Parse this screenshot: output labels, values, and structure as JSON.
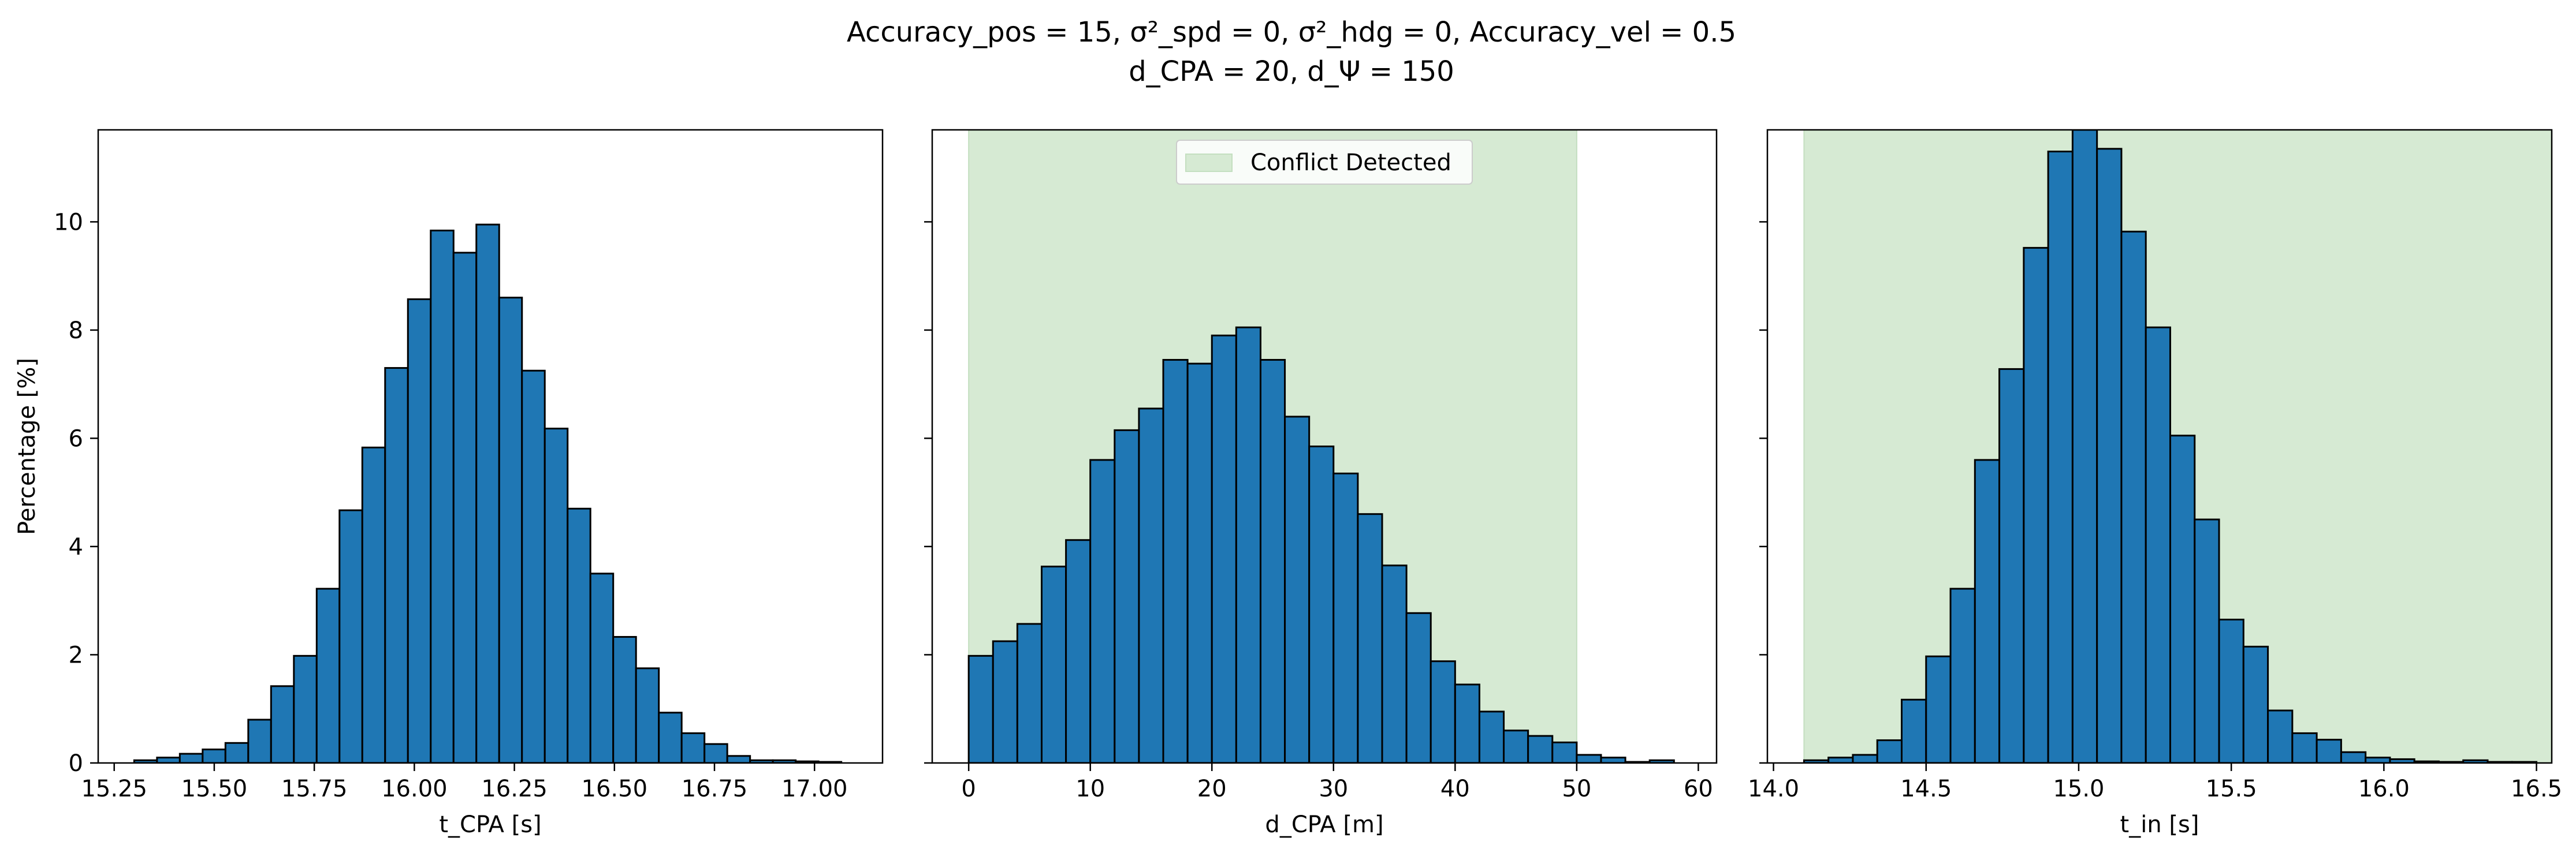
{
  "figure": {
    "title_line1": "Accuracy_pos = 15, σ²_spd = 0, σ²_hdg = 0, Accuracy_vel = 0.5",
    "title_line2": "d_CPA = 20, d_Ψ = 150"
  },
  "colors": {
    "bar_fill": "#1f77b4",
    "bar_edge": "#000000",
    "conflict_span": "#d6ead3",
    "axis": "#000000"
  },
  "chart_data": [
    {
      "type": "bar",
      "xlabel": "t_CPA [s]",
      "ylabel": "Percentage [%]",
      "xlim": [
        15.21,
        17.17
      ],
      "ylim": [
        0,
        11.7
      ],
      "xticks": [
        15.25,
        15.5,
        15.75,
        16.0,
        16.25,
        16.5,
        16.75,
        17.0
      ],
      "xtick_labels": [
        "15.25",
        "15.50",
        "15.75",
        "16.00",
        "16.25",
        "16.50",
        "16.75",
        "17.00"
      ],
      "yticks": [
        0,
        2,
        4,
        6,
        8,
        10
      ],
      "ytick_labels": [
        "0",
        "2",
        "4",
        "6",
        "8",
        "10"
      ],
      "bin_edges": [
        15.3,
        15.357,
        15.414,
        15.471,
        15.528,
        15.585,
        15.642,
        15.699,
        15.756,
        15.813,
        15.87,
        15.927,
        15.984,
        16.041,
        16.098,
        16.155,
        16.212,
        16.269,
        16.326,
        16.383,
        16.44,
        16.497,
        16.554,
        16.611,
        16.668,
        16.725,
        16.782,
        16.839,
        16.896,
        16.953,
        17.01,
        17.067
      ],
      "values": [
        0.05,
        0.1,
        0.17,
        0.25,
        0.37,
        0.8,
        1.42,
        1.98,
        3.22,
        4.67,
        5.83,
        7.3,
        8.57,
        9.84,
        9.43,
        9.95,
        8.6,
        7.25,
        6.18,
        4.7,
        3.5,
        2.33,
        1.75,
        0.93,
        0.55,
        0.35,
        0.13,
        0.05,
        0.05,
        0.03,
        0.02
      ],
      "legend": null,
      "span": null
    },
    {
      "type": "bar",
      "xlabel": "d_CPA [m]",
      "ylabel": "",
      "xlim": [
        -3,
        61.5
      ],
      "ylim": [
        0,
        11.7
      ],
      "xticks": [
        0,
        10,
        20,
        30,
        40,
        50,
        60
      ],
      "xtick_labels": [
        "0",
        "10",
        "20",
        "30",
        "40",
        "50",
        "60"
      ],
      "yticks": [
        0,
        2,
        4,
        6,
        8,
        10
      ],
      "ytick_labels": [
        "",
        "",
        "",
        "",
        "",
        ""
      ],
      "bin_edges": [
        0,
        2,
        4,
        6,
        8,
        10,
        12,
        14,
        16,
        18,
        20,
        22,
        24,
        26,
        28,
        30,
        32,
        34,
        36,
        38,
        40,
        42,
        44,
        46,
        48,
        50,
        52,
        54,
        56,
        58
      ],
      "values": [
        1.98,
        2.25,
        2.57,
        3.63,
        4.12,
        5.6,
        6.15,
        6.55,
        7.45,
        7.38,
        7.9,
        8.05,
        7.45,
        6.4,
        5.85,
        5.35,
        4.6,
        3.65,
        2.77,
        1.88,
        1.45,
        0.95,
        0.6,
        0.5,
        0.38,
        0.15,
        0.1,
        0.02,
        0.05
      ],
      "legend": {
        "label": "Conflict Detected",
        "position": "upper center"
      },
      "span": [
        0,
        50
      ]
    },
    {
      "type": "bar",
      "xlabel": "t_in [s]",
      "ylabel": "",
      "xlim": [
        13.98,
        16.55
      ],
      "ylim": [
        0,
        11.7
      ],
      "xticks": [
        14.0,
        14.5,
        15.0,
        15.5,
        16.0,
        16.5
      ],
      "xtick_labels": [
        "14.0",
        "14.5",
        "15.0",
        "15.5",
        "16.0",
        "16.5"
      ],
      "yticks": [
        0,
        2,
        4,
        6,
        8,
        10
      ],
      "ytick_labels": [
        "",
        "",
        "",
        "",
        "",
        ""
      ],
      "bin_edges": [
        14.1,
        14.18,
        14.26,
        14.34,
        14.42,
        14.5,
        14.58,
        14.66,
        14.74,
        14.82,
        14.9,
        14.98,
        15.06,
        15.14,
        15.22,
        15.3,
        15.38,
        15.46,
        15.54,
        15.62,
        15.7,
        15.78,
        15.86,
        15.94,
        16.02,
        16.1,
        16.18,
        16.26,
        16.34,
        16.42,
        16.5
      ],
      "values": [
        0.05,
        0.1,
        0.15,
        0.42,
        1.17,
        1.97,
        3.22,
        5.6,
        7.28,
        9.52,
        11.3,
        11.7,
        11.35,
        9.82,
        8.05,
        6.05,
        4.5,
        2.65,
        2.15,
        0.97,
        0.55,
        0.43,
        0.2,
        0.1,
        0.07,
        0.03,
        0.02,
        0.05,
        0.02,
        0.02
      ],
      "legend": null,
      "span": [
        14.1,
        16.55
      ]
    }
  ]
}
